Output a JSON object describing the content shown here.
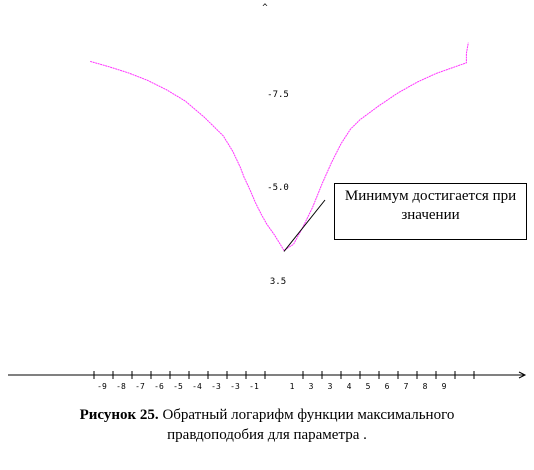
{
  "chart_data": {
    "type": "line",
    "title": "",
    "xlabel": "",
    "ylabel": "",
    "x_tick_labels": [
      "-9",
      "-8",
      "-7",
      "-6",
      "-5",
      "-4",
      "-3",
      "-3",
      "-1",
      "1",
      "3",
      "3",
      "4",
      "5",
      "6",
      "7",
      "8",
      "9"
    ],
    "y_tick_labels": [
      "-7.5",
      "-5.0",
      "3.5"
    ],
    "series": [
      {
        "color": "#ff33ff",
        "x": [
          -10.2,
          -9.2,
          -8.2,
          -7.2,
          -6.2,
          -5.2,
          -4.2,
          -3.2,
          -2.7,
          -2.3,
          -2.1,
          -1.8,
          -1.5,
          -1.2,
          -0.9,
          -0.5,
          0,
          0.5,
          1,
          1.5,
          2,
          2.5,
          3,
          3.5,
          4,
          5,
          6,
          7,
          8,
          9,
          9.6,
          9.6,
          9.7
        ],
        "y": [
          9.36,
          9.2,
          9.02,
          8.8,
          8.52,
          8.18,
          7.7,
          7.14,
          6.68,
          6.2,
          5.9,
          5.54,
          5.14,
          4.8,
          4.5,
          4.18,
          3.72,
          3.9,
          4.42,
          5.0,
          5.7,
          6.34,
          6.9,
          7.34,
          7.62,
          8.04,
          8.42,
          8.74,
          9.0,
          9.2,
          9.32,
          9.6,
          9.92
        ]
      }
    ],
    "annotation": {
      "line1": "Минимум достигается при",
      "line2": "значении",
      "target": {
        "x": 0,
        "y": 3.72
      }
    },
    "axis_arrows": true,
    "grid": false
  },
  "caption": {
    "label": "Рисунок 25.",
    "line1": " Обратный логарифм функции максимального",
    "line2": "правдоподобия для параметра ."
  },
  "colors": {
    "curve": "#ff33ff",
    "axes": "#000000"
  }
}
